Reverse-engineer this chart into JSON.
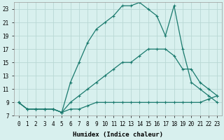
{
  "xlabel": "Humidex (Indice chaleur)",
  "background_color": "#d8f0ee",
  "grid_color": "#b8d8d4",
  "line_color": "#1a7a6e",
  "xlim": [
    -0.5,
    23.5
  ],
  "ylim": [
    7,
    24
  ],
  "yticks": [
    7,
    9,
    11,
    13,
    15,
    17,
    19,
    21,
    23
  ],
  "xticks": [
    0,
    1,
    2,
    3,
    4,
    5,
    6,
    7,
    8,
    9,
    10,
    11,
    12,
    13,
    14,
    15,
    16,
    17,
    18,
    19,
    20,
    21,
    22,
    23
  ],
  "line1_x": [
    0,
    1,
    2,
    3,
    4,
    5,
    6,
    7,
    8,
    9,
    10,
    11,
    12,
    13,
    14,
    15,
    16,
    17,
    18,
    19,
    20,
    21,
    22,
    23
  ],
  "line1_y": [
    9,
    8,
    8,
    8,
    8,
    7.5,
    8,
    8,
    8.5,
    9,
    9,
    9,
    9,
    9,
    9,
    9,
    9,
    9,
    9,
    9,
    9,
    9,
    9.5,
    10
  ],
  "line2_x": [
    0,
    1,
    2,
    3,
    4,
    5,
    6,
    7,
    8,
    9,
    10,
    11,
    12,
    13,
    14,
    15,
    16,
    17,
    18,
    19,
    20,
    21,
    22,
    23
  ],
  "line2_y": [
    9,
    8,
    8,
    8,
    8,
    7.5,
    9,
    10,
    11,
    12,
    13,
    14,
    15,
    15,
    16,
    17,
    17,
    17,
    16,
    14,
    14,
    12,
    11,
    10
  ],
  "line3_x": [
    0,
    1,
    2,
    3,
    4,
    5,
    6,
    7,
    8,
    9,
    10,
    11,
    12,
    13,
    14,
    15,
    16,
    17,
    18,
    19,
    20,
    21,
    22,
    23
  ],
  "line3_y": [
    9,
    8,
    8,
    8,
    8,
    7.5,
    12,
    15,
    18,
    20,
    21,
    22,
    23.5,
    23.5,
    24,
    23,
    22,
    19,
    23.5,
    17,
    12,
    11,
    10,
    9
  ],
  "marker": "+",
  "markersize": 3.5,
  "linewidth": 0.9,
  "xlabel_fontsize": 6.5,
  "tick_fontsize": 5.5
}
